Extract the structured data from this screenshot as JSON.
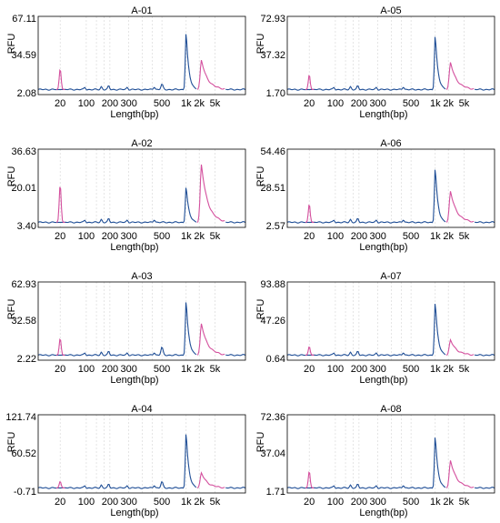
{
  "chart_data": [
    {
      "type": "line",
      "title": "A-01",
      "xlabel": "Length(bp)",
      "ylabel": "RFU",
      "y_ticks": [
        "67.11",
        "34.59",
        "2.08"
      ],
      "ylim": [
        2.08,
        67.11
      ],
      "x_ticks": [
        "20",
        "100",
        "200",
        "300",
        "500",
        "1k",
        "2k",
        "5k"
      ],
      "marker_color": "#d4509e",
      "trace_color": "#1f4e96",
      "grid": "vertical-dashed",
      "peaks": [
        {
          "x": "20",
          "y": 22.5,
          "kind": "marker"
        },
        {
          "x": "500",
          "y": 8,
          "kind": "sample"
        },
        {
          "x": "1k",
          "y": 58,
          "kind": "sample"
        },
        {
          "x": "5k",
          "y": 30,
          "kind": "marker"
        }
      ]
    },
    {
      "type": "line",
      "title": "A-05",
      "xlabel": "Length(bp)",
      "ylabel": "RFU",
      "y_ticks": [
        "72.93",
        "37.32",
        "1.70"
      ],
      "ylim": [
        1.7,
        72.93
      ],
      "x_ticks": [
        "20",
        "100",
        "200",
        "300",
        "500",
        "1k",
        "2k",
        "5k"
      ],
      "marker_color": "#d4509e",
      "trace_color": "#1f4e96",
      "grid": "vertical-dashed",
      "peaks": [
        {
          "x": "20",
          "y": 18,
          "kind": "marker"
        },
        {
          "x": "1k",
          "y": 60,
          "kind": "sample"
        },
        {
          "x": "5k",
          "y": 30,
          "kind": "marker"
        }
      ]
    },
    {
      "type": "line",
      "title": "A-02",
      "xlabel": "Length(bp)",
      "ylabel": "RFU",
      "y_ticks": [
        "36.63",
        "20.01",
        "3.40"
      ],
      "ylim": [
        3.4,
        36.63
      ],
      "x_ticks": [
        "20",
        "100",
        "200",
        "300",
        "500",
        "1k",
        "2k",
        "5k"
      ],
      "marker_color": "#d4509e",
      "trace_color": "#1f4e96",
      "grid": "vertical-dashed",
      "peaks": [
        {
          "x": "20",
          "y": 22,
          "kind": "marker"
        },
        {
          "x": "1k",
          "y": 21.5,
          "kind": "sample"
        },
        {
          "x": "5k",
          "y": 31,
          "kind": "marker"
        }
      ]
    },
    {
      "type": "line",
      "title": "A-06",
      "xlabel": "Length(bp)",
      "ylabel": "RFU",
      "y_ticks": [
        "54.46",
        "28.51",
        "2.57"
      ],
      "ylim": [
        2.57,
        54.46
      ],
      "x_ticks": [
        "20",
        "100",
        "200",
        "300",
        "500",
        "1k",
        "2k",
        "5k"
      ],
      "marker_color": "#d4509e",
      "trace_color": "#1f4e96",
      "grid": "vertical-dashed",
      "peaks": [
        {
          "x": "20",
          "y": 17,
          "kind": "marker"
        },
        {
          "x": "1k",
          "y": 45,
          "kind": "sample"
        },
        {
          "x": "5k",
          "y": 26,
          "kind": "marker"
        }
      ]
    },
    {
      "type": "line",
      "title": "A-03",
      "xlabel": "Length(bp)",
      "ylabel": "RFU",
      "y_ticks": [
        "62.93",
        "32.58",
        "2.22"
      ],
      "ylim": [
        2.22,
        62.93
      ],
      "x_ticks": [
        "20",
        "100",
        "200",
        "300",
        "500",
        "1k",
        "2k",
        "5k"
      ],
      "marker_color": "#d4509e",
      "trace_color": "#1f4e96",
      "grid": "vertical-dashed",
      "peaks": [
        {
          "x": "20",
          "y": 18,
          "kind": "marker"
        },
        {
          "x": "500",
          "y": 10,
          "kind": "sample"
        },
        {
          "x": "1k",
          "y": 52,
          "kind": "sample"
        },
        {
          "x": "5k",
          "y": 30,
          "kind": "marker"
        }
      ]
    },
    {
      "type": "line",
      "title": "A-07",
      "xlabel": "Length(bp)",
      "ylabel": "RFU",
      "y_ticks": [
        "93.88",
        "47.26",
        "0.64"
      ],
      "ylim": [
        0.64,
        93.88
      ],
      "x_ticks": [
        "20",
        "100",
        "200",
        "300",
        "500",
        "1k",
        "2k",
        "5k"
      ],
      "marker_color": "#d4509e",
      "trace_color": "#1f4e96",
      "grid": "vertical-dashed",
      "peaks": [
        {
          "x": "20",
          "y": 14,
          "kind": "marker"
        },
        {
          "x": "1k",
          "y": 75,
          "kind": "sample"
        },
        {
          "x": "5k",
          "y": 22,
          "kind": "marker"
        }
      ]
    },
    {
      "type": "line",
      "title": "A-04",
      "xlabel": "Length(bp)",
      "ylabel": "RFU",
      "y_ticks": [
        "121.74",
        "60.52",
        "-0.71"
      ],
      "ylim": [
        -0.71,
        121.74
      ],
      "x_ticks": [
        "20",
        "100",
        "200",
        "300",
        "500",
        "1k",
        "2k",
        "5k"
      ],
      "marker_color": "#d4509e",
      "trace_color": "#1f4e96",
      "grid": "vertical-dashed",
      "peaks": [
        {
          "x": "20",
          "y": 13,
          "kind": "marker"
        },
        {
          "x": "500",
          "y": 12,
          "kind": "sample"
        },
        {
          "x": "1k",
          "y": 101,
          "kind": "sample"
        },
        {
          "x": "5k",
          "y": 27,
          "kind": "marker"
        }
      ]
    },
    {
      "type": "line",
      "title": "A-08",
      "xlabel": "Length(bp)",
      "ylabel": "RFU",
      "y_ticks": [
        "72.36",
        "37.04",
        "1.71"
      ],
      "ylim": [
        1.71,
        72.36
      ],
      "x_ticks": [
        "20",
        "100",
        "200",
        "300",
        "500",
        "1k",
        "2k",
        "5k"
      ],
      "marker_color": "#d4509e",
      "trace_color": "#1f4e96",
      "grid": "vertical-dashed",
      "peaks": [
        {
          "x": "20",
          "y": 20,
          "kind": "marker"
        },
        {
          "x": "1k",
          "y": 57,
          "kind": "sample"
        },
        {
          "x": "5k",
          "y": 30,
          "kind": "marker"
        }
      ]
    }
  ]
}
